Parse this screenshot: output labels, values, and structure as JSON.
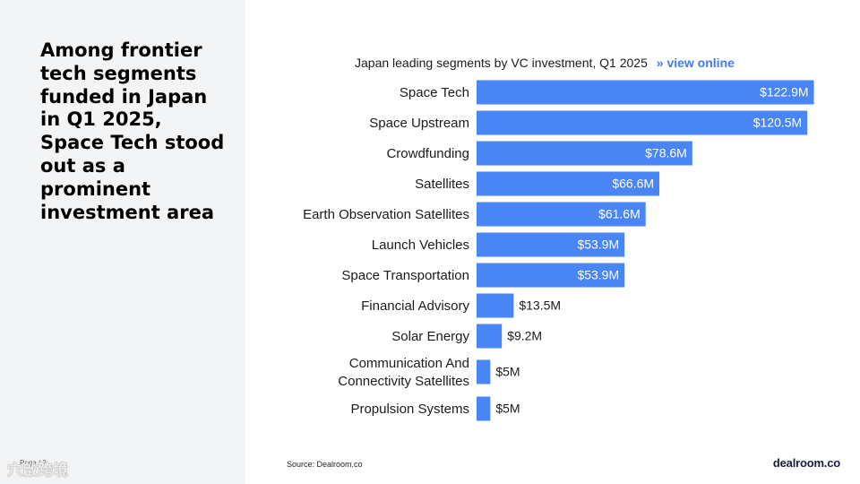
{
  "headline": "Among frontier tech segments funded in Japan in Q1 2025, Space Tech stood out as a prominent investment area",
  "page_label": "Page / 2",
  "watermark": "穴啟跨境",
  "source": "Source:  Dealroom.co",
  "logo": "dealroom.co",
  "colors": {
    "bar": "#4a85f5",
    "panel": "#f3f4f6",
    "link": "#3f7de8"
  },
  "chart_data": {
    "type": "bar",
    "orientation": "horizontal",
    "title": "Japan leading segments by VC investment, Q1 2025",
    "title_link": "» view online",
    "categories": [
      [
        "Space Tech"
      ],
      [
        "Space Upstream"
      ],
      [
        "Crowdfunding"
      ],
      [
        "Satellites"
      ],
      [
        "Earth Observation Satellites"
      ],
      [
        "Launch Vehicles"
      ],
      [
        "Space Transportation"
      ],
      [
        "Financial Advisory"
      ],
      [
        "Solar Energy"
      ],
      [
        "Communication And",
        "Connectivity Satellites"
      ],
      [
        "Propulsion Systems"
      ]
    ],
    "values": [
      122.9,
      120.5,
      78.6,
      66.6,
      61.6,
      53.9,
      53.9,
      13.5,
      9.2,
      5,
      5
    ],
    "value_labels": [
      "$122.9M",
      "$120.5M",
      "$78.6M",
      "$66.6M",
      "$61.6M",
      "$53.9M",
      "$53.9M",
      "$13.5M",
      "$9.2M",
      "$5M",
      "$5M"
    ],
    "unit": "$M",
    "xlim": [
      0,
      125
    ],
    "grid": false,
    "legend": "none"
  }
}
